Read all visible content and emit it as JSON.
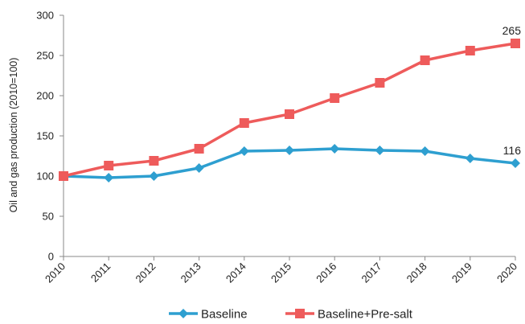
{
  "chart_data": {
    "type": "line",
    "categories": [
      "2010",
      "2011",
      "2012",
      "2013",
      "2014",
      "2015",
      "2016",
      "2017",
      "2018",
      "2019",
      "2020"
    ],
    "series": [
      {
        "name": "Baseline",
        "color": "#2E9FD0",
        "marker": "diamond",
        "values": [
          100,
          98,
          100,
          110,
          131,
          132,
          134,
          132,
          131,
          122,
          116
        ]
      },
      {
        "name": "Baseline+Pre-salt",
        "color": "#EE5B5B",
        "marker": "square",
        "values": [
          100,
          113,
          119,
          134,
          166,
          177,
          197,
          216,
          244,
          256,
          265
        ]
      }
    ],
    "title": "",
    "xlabel": "",
    "ylabel": "Oil and gas production (2010=100)",
    "ylim": [
      0,
      300
    ],
    "yticks": [
      0,
      50,
      100,
      150,
      200,
      250,
      300
    ],
    "grid": false,
    "legend_position": "bottom",
    "annotations": [
      {
        "series": "Baseline+Pre-salt",
        "category": "2020",
        "text": "265"
      },
      {
        "series": "Baseline",
        "category": "2020",
        "text": "116"
      }
    ]
  }
}
